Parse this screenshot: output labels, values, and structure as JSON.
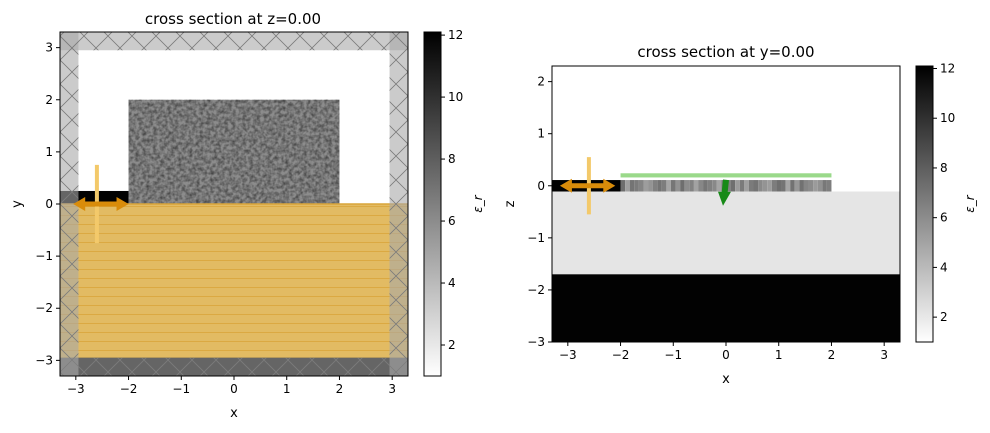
{
  "chart_data": [
    {
      "type": "heatmap",
      "title": "cross section at z=0.00",
      "xlabel": "x",
      "ylabel": "y",
      "xlim": [
        -3.3,
        3.3
      ],
      "ylim": [
        -3.3,
        3.3
      ],
      "xticks": [
        -3,
        -2,
        -1,
        0,
        1,
        2,
        3
      ],
      "yticks": [
        -3,
        -2,
        -1,
        0,
        1,
        2,
        3
      ],
      "xtick_labels": [
        "−3",
        "−2",
        "−1",
        "0",
        "1",
        "2",
        "3"
      ],
      "ytick_labels": [
        "−3",
        "−2",
        "−1",
        "0",
        "1",
        "2",
        "3"
      ],
      "regions": [
        {
          "name": "substrate",
          "x": [
            -3.3,
            3.3
          ],
          "y": [
            -3.3,
            0
          ],
          "permittivity": 12.0
        },
        {
          "name": "waveguide",
          "x": [
            -3.3,
            -2.0
          ],
          "y": [
            -0.25,
            0.25
          ],
          "permittivity": 12.0
        },
        {
          "name": "design region",
          "x": [
            -2.0,
            2.0
          ],
          "y": [
            0,
            2.0
          ],
          "permittivity": "random 5–8"
        }
      ],
      "pml_thickness": 0.35,
      "source": {
        "x": -2.6,
        "y": 0,
        "direction": "x",
        "span_y": [
          -0.75,
          0.75
        ]
      },
      "colorbar": {
        "label": "ε_r",
        "min": 1,
        "max": 12.1,
        "ticks": [
          2,
          4,
          6,
          8,
          10,
          12
        ]
      }
    },
    {
      "type": "heatmap",
      "title": "cross section at y=0.00",
      "xlabel": "x",
      "ylabel": "z",
      "xlim": [
        -3.3,
        3.3
      ],
      "ylim": [
        -3.0,
        2.3
      ],
      "xticks": [
        -3,
        -2,
        -1,
        0,
        1,
        2,
        3
      ],
      "yticks": [
        -3,
        -2,
        -1,
        0,
        1,
        2
      ],
      "xtick_labels": [
        "−3",
        "−2",
        "−1",
        "0",
        "1",
        "2",
        "3"
      ],
      "ytick_labels": [
        "−3",
        "−2",
        "−1",
        "0",
        "1",
        "2"
      ],
      "regions": [
        {
          "name": "oxide",
          "x": [
            -3.3,
            3.3
          ],
          "z": [
            -1.7,
            -0.11
          ],
          "permittivity": 2.1
        },
        {
          "name": "silicon substrate",
          "x": [
            -3.3,
            3.3
          ],
          "z": [
            -3.0,
            -1.7
          ],
          "permittivity": 12.0
        },
        {
          "name": "waveguide",
          "x": [
            -3.3,
            -2.0
          ],
          "z": [
            -0.11,
            0.11
          ],
          "permittivity": 12.0
        },
        {
          "name": "design region",
          "x": [
            -2.0,
            2.0
          ],
          "z": [
            -0.11,
            0.11
          ],
          "permittivity": "random 5–8"
        }
      ],
      "monitor": {
        "x": [
          -2.0,
          2.0
        ],
        "z": 0.2
      },
      "source": {
        "x": -2.6,
        "z": 0,
        "direction": "x",
        "span_z": [
          -0.55,
          0.55
        ]
      },
      "beam_source": {
        "x": 0,
        "z": 0,
        "direction": "-z"
      },
      "colorbar": {
        "label": "ε_r",
        "min": 1,
        "max": 12.1,
        "ticks": [
          2,
          4,
          6,
          8,
          10,
          12
        ]
      }
    }
  ],
  "colors": {
    "pml": "#a9a9a9",
    "source": "#d98c0a",
    "source_box": "#f3c96a",
    "monitor": "#9ad98a",
    "beam": "#178a17",
    "oxide": "#e5e5e5"
  }
}
